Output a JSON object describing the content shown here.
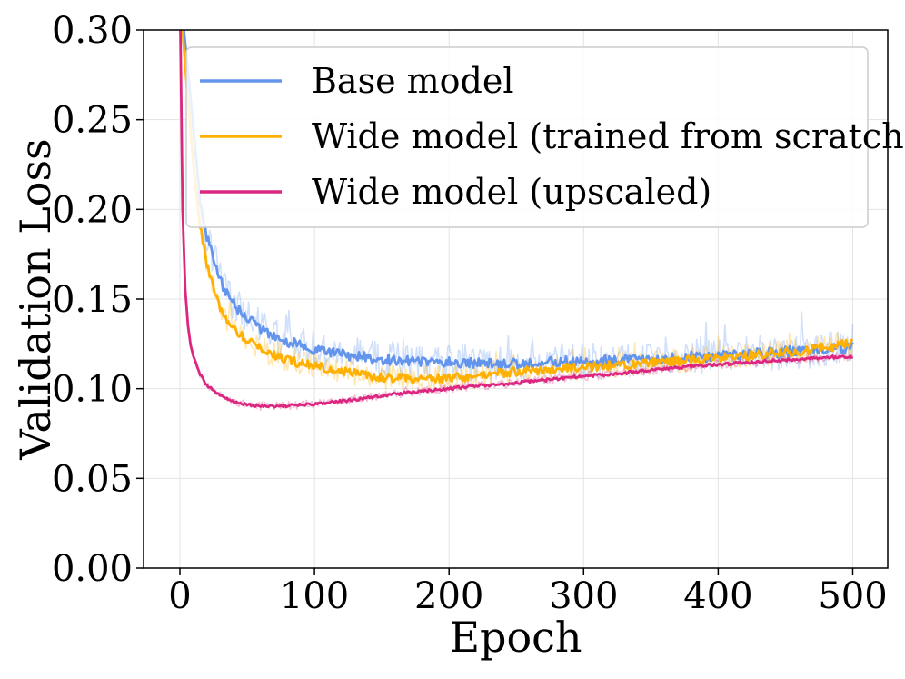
{
  "chart_data": {
    "type": "line",
    "title": "",
    "xlabel": "Epoch",
    "ylabel": "Validation Loss",
    "xlim": [
      -27,
      526
    ],
    "ylim": [
      0.0,
      0.3
    ],
    "xticks": [
      0,
      100,
      200,
      300,
      400,
      500
    ],
    "xtick_labels": [
      "0",
      "100",
      "200",
      "300",
      "400",
      "500"
    ],
    "yticks": [
      0.0,
      0.05,
      0.1,
      0.15,
      0.2,
      0.25,
      0.3
    ],
    "ytick_labels": [
      "0.00",
      "0.05",
      "0.10",
      "0.15",
      "0.20",
      "0.25",
      "0.30"
    ],
    "grid": true,
    "legend_position": "top-right",
    "series": [
      {
        "name": "Base model",
        "color": "#6495ED",
        "x": [
          0,
          5,
          10,
          15,
          20,
          30,
          40,
          50,
          60,
          70,
          80,
          90,
          100,
          120,
          140,
          160,
          180,
          200,
          220,
          240,
          260,
          280,
          300,
          320,
          340,
          360,
          380,
          400,
          420,
          440,
          460,
          480,
          500
        ],
        "values": [
          0.32,
          0.285,
          0.245,
          0.205,
          0.185,
          0.16,
          0.147,
          0.14,
          0.134,
          0.129,
          0.126,
          0.124,
          0.122,
          0.119,
          0.117,
          0.116,
          0.115,
          0.115,
          0.114,
          0.114,
          0.114,
          0.115,
          0.115,
          0.116,
          0.116,
          0.117,
          0.118,
          0.118,
          0.119,
          0.12,
          0.121,
          0.122,
          0.123
        ]
      },
      {
        "name": "Wide model (trained from scratch)",
        "color": "#FFB000",
        "x": [
          0,
          5,
          10,
          15,
          20,
          30,
          40,
          50,
          60,
          70,
          80,
          90,
          100,
          120,
          140,
          160,
          180,
          200,
          220,
          240,
          260,
          280,
          300,
          320,
          340,
          360,
          380,
          400,
          420,
          440,
          460,
          480,
          500
        ],
        "values": [
          0.32,
          0.27,
          0.225,
          0.19,
          0.17,
          0.145,
          0.133,
          0.127,
          0.122,
          0.119,
          0.116,
          0.114,
          0.113,
          0.11,
          0.107,
          0.106,
          0.105,
          0.106,
          0.107,
          0.109,
          0.11,
          0.111,
          0.112,
          0.113,
          0.114,
          0.115,
          0.116,
          0.117,
          0.118,
          0.12,
          0.121,
          0.123,
          0.126
        ]
      },
      {
        "name": "Wide model (upscaled)",
        "color": "#DC267F",
        "x": [
          0,
          2,
          4,
          6,
          8,
          10,
          15,
          20,
          30,
          40,
          50,
          60,
          70,
          80,
          90,
          100,
          120,
          140,
          160,
          180,
          200,
          220,
          240,
          260,
          280,
          300,
          320,
          340,
          360,
          380,
          400,
          420,
          440,
          460,
          480,
          500
        ],
        "values": [
          0.32,
          0.2,
          0.155,
          0.135,
          0.124,
          0.118,
          0.108,
          0.102,
          0.096,
          0.093,
          0.091,
          0.0905,
          0.0903,
          0.0905,
          0.091,
          0.0915,
          0.093,
          0.095,
          0.097,
          0.0985,
          0.1,
          0.1015,
          0.1025,
          0.104,
          0.1055,
          0.107,
          0.108,
          0.1095,
          0.111,
          0.1125,
          0.1135,
          0.1145,
          0.1155,
          0.1165,
          0.1175,
          0.118
        ]
      }
    ]
  }
}
